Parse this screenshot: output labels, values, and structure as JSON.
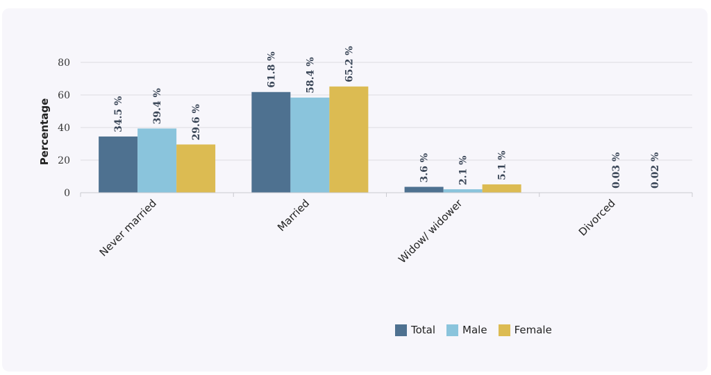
{
  "chart_data": {
    "type": "bar",
    "categories": [
      "Never married",
      "Married",
      "Widow/ widower",
      "Divorced"
    ],
    "series": [
      {
        "name": "Total",
        "values": [
          34.5,
          61.8,
          3.6,
          0.03
        ],
        "labels": [
          "34.5 %",
          "61.8 %",
          "3.6 %",
          ""
        ],
        "color": "#4e7190"
      },
      {
        "name": "Male",
        "values": [
          39.4,
          58.4,
          2.1,
          0.03
        ],
        "labels": [
          "39.4 %",
          "58.4 %",
          "2.1 %",
          "0.03 %"
        ],
        "color": "#8ac4dc"
      },
      {
        "name": "Female",
        "values": [
          29.6,
          65.2,
          5.1,
          0.02
        ],
        "labels": [
          "29.6 %",
          "65.2 %",
          "5.1 %",
          "0.02 %"
        ],
        "color": "#dcbb52"
      }
    ],
    "ylabel": "Percentage",
    "xlabel": "",
    "ylim": [
      0,
      80
    ],
    "yticks": [
      "0",
      "20",
      "40",
      "60",
      "80"
    ],
    "grid": true,
    "legend_position": "bottom-right"
  }
}
